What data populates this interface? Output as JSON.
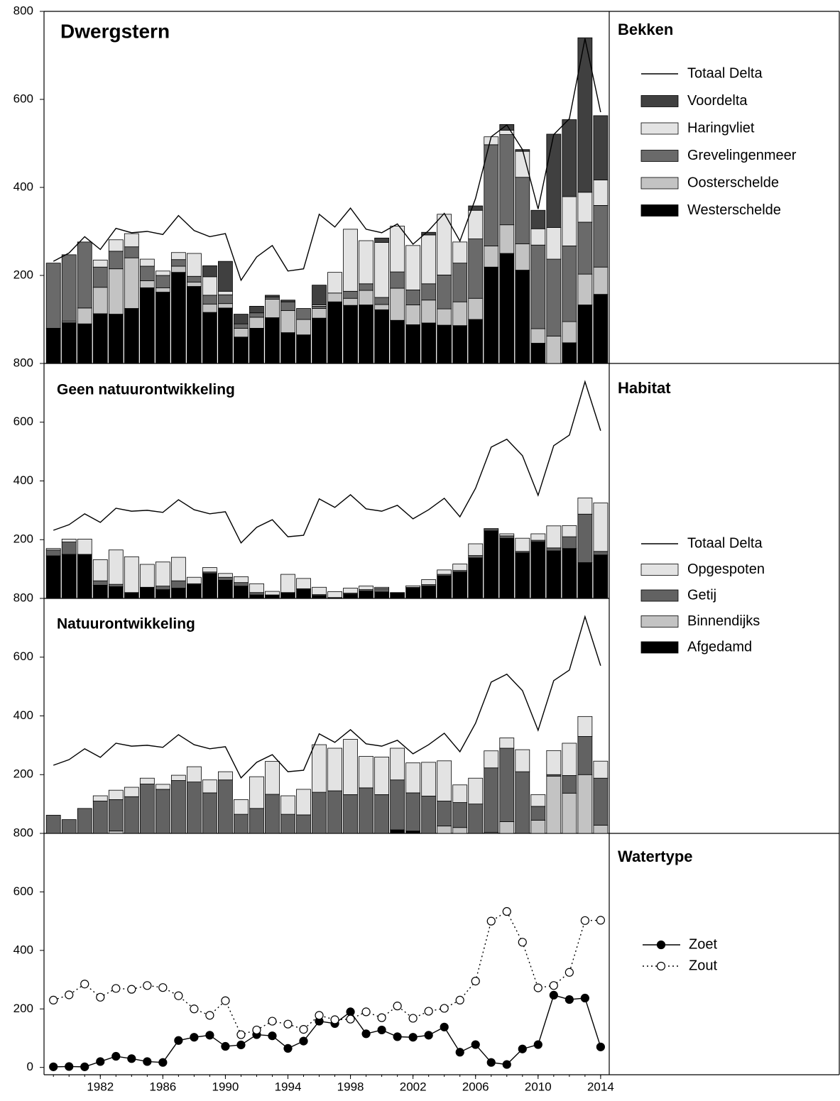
{
  "chart_data": [
    {
      "type": "bar",
      "stacked": true,
      "title": "Dwergstern",
      "legend_title": "Bekken",
      "x": [
        1979,
        1980,
        1981,
        1982,
        1983,
        1984,
        1985,
        1986,
        1987,
        1988,
        1989,
        1990,
        1991,
        1992,
        1993,
        1994,
        1995,
        1996,
        1997,
        1998,
        1999,
        2000,
        2001,
        2002,
        2003,
        2004,
        2005,
        2006,
        2007,
        2008,
        2009,
        2010,
        2011,
        2012,
        2013,
        2014
      ],
      "ylim": [
        0,
        800
      ],
      "yticks": [
        200,
        400,
        600,
        800
      ],
      "series": [
        {
          "name": "Westerschelde",
          "color": "#000000",
          "values": [
            80,
            93,
            90,
            113,
            112,
            125,
            172,
            162,
            207,
            175,
            116,
            126,
            60,
            80,
            104,
            70,
            65,
            103,
            140,
            132,
            133,
            122,
            98,
            88,
            92,
            87,
            86,
            100,
            219,
            250,
            212,
            46,
            0,
            47,
            133,
            157
          ]
        },
        {
          "name": "Oosterschelde",
          "color": "#c3c3c3",
          "values": [
            0,
            3,
            36,
            60,
            103,
            115,
            16,
            10,
            14,
            10,
            19,
            10,
            20,
            25,
            42,
            50,
            35,
            22,
            20,
            16,
            33,
            12,
            73,
            45,
            52,
            37,
            54,
            48,
            48,
            65,
            60,
            33,
            62,
            48,
            70,
            62
          ]
        },
        {
          "name": "Grevelingenmeer",
          "color": "#6a6a6a",
          "values": [
            148,
            151,
            150,
            46,
            40,
            25,
            33,
            28,
            15,
            13,
            20,
            20,
            10,
            10,
            5,
            20,
            25,
            5,
            0,
            16,
            15,
            16,
            37,
            34,
            37,
            77,
            88,
            135,
            230,
            205,
            151,
            190,
            175,
            172,
            118,
            140
          ]
        },
        {
          "name": "Haringvliet",
          "color": "#e3e3e3",
          "values": [
            0,
            0,
            0,
            16,
            26,
            30,
            16,
            10,
            16,
            52,
            42,
            8,
            0,
            0,
            0,
            0,
            0,
            3,
            47,
            141,
            98,
            125,
            104,
            101,
            111,
            138,
            48,
            65,
            18,
            10,
            59,
            37,
            72,
            112,
            68,
            58
          ]
        },
        {
          "name": "Voordelta",
          "color": "#404040",
          "values": [
            0,
            0,
            0,
            0,
            0,
            0,
            0,
            0,
            0,
            0,
            25,
            68,
            22,
            15,
            4,
            4,
            0,
            45,
            0,
            0,
            0,
            10,
            0,
            0,
            6,
            0,
            0,
            10,
            0,
            13,
            4,
            42,
            212,
            175,
            351,
            146
          ]
        },
        {
          "name": "Totaal Delta",
          "type": "line",
          "color": "#000000",
          "values": [
            232,
            251,
            288,
            259,
            307,
            297,
            300,
            293,
            336,
            302,
            288,
            295,
            189,
            242,
            268,
            210,
            215,
            339,
            310,
            353,
            305,
            297,
            317,
            271,
            302,
            341,
            278,
            375,
            515,
            542,
            486,
            351,
            520,
            556,
            738,
            571
          ]
        }
      ]
    },
    {
      "type": "bar",
      "stacked": true,
      "title": "Geen natuurontwikkeling",
      "legend_title": "Habitat",
      "total_label": "Totaal Delta",
      "ylim": [
        0,
        800
      ],
      "yticks": [
        200,
        400,
        600,
        800
      ],
      "series": [
        {
          "name": "Afgedamd",
          "color": "#000000",
          "values": [
            145,
            150,
            150,
            45,
            40,
            20,
            38,
            30,
            35,
            47,
            85,
            62,
            42,
            12,
            10,
            20,
            30,
            10,
            3,
            15,
            25,
            22,
            18,
            35,
            42,
            77,
            90,
            138,
            230,
            205,
            155,
            193,
            162,
            170,
            122,
            148
          ]
        },
        {
          "name": "Binnendijks",
          "color": "#c3c3c3",
          "values": [
            0,
            0,
            0,
            0,
            0,
            0,
            0,
            0,
            0,
            0,
            0,
            0,
            0,
            0,
            0,
            0,
            0,
            0,
            0,
            0,
            0,
            0,
            0,
            0,
            0,
            0,
            0,
            0,
            0,
            0,
            0,
            0,
            0,
            0,
            0,
            0
          ]
        },
        {
          "name": "Getij",
          "color": "#626262",
          "values": [
            20,
            42,
            0,
            15,
            8,
            0,
            0,
            12,
            25,
            3,
            5,
            10,
            12,
            8,
            2,
            0,
            3,
            3,
            0,
            3,
            5,
            12,
            2,
            3,
            5,
            5,
            5,
            8,
            5,
            8,
            5,
            5,
            10,
            40,
            165,
            12
          ]
        },
        {
          "name": "Opgespoten",
          "color": "#e3e3e3",
          "values": [
            5,
            10,
            52,
            72,
            117,
            122,
            78,
            82,
            80,
            22,
            15,
            13,
            20,
            30,
            12,
            62,
            35,
            25,
            20,
            17,
            12,
            4,
            0,
            5,
            17,
            15,
            22,
            40,
            3,
            7,
            45,
            22,
            75,
            38,
            55,
            165
          ]
        }
      ]
    },
    {
      "type": "bar",
      "stacked": true,
      "title": "Natuurontwikkeling",
      "ylim": [
        0,
        800
      ],
      "yticks": [
        200,
        400,
        600,
        800
      ],
      "series": [
        {
          "color": "#000000",
          "values": [
            0,
            0,
            0,
            0,
            0,
            0,
            0,
            0,
            0,
            0,
            0,
            0,
            0,
            0,
            0,
            0,
            0,
            0,
            0,
            0,
            0,
            0,
            12,
            8,
            0,
            0,
            0,
            0,
            0,
            0,
            0,
            0,
            0,
            0,
            0,
            0
          ]
        },
        {
          "color": "#c3c3c3",
          "values": [
            0,
            0,
            0,
            0,
            8,
            0,
            0,
            0,
            0,
            0,
            0,
            0,
            0,
            0,
            0,
            0,
            0,
            0,
            0,
            0,
            0,
            0,
            0,
            0,
            0,
            25,
            20,
            0,
            3,
            40,
            0,
            45,
            195,
            137,
            200,
            28
          ]
        },
        {
          "color": "#626262",
          "values": [
            62,
            47,
            85,
            110,
            107,
            125,
            168,
            150,
            180,
            175,
            138,
            182,
            65,
            85,
            133,
            65,
            63,
            140,
            145,
            132,
            155,
            132,
            170,
            130,
            127,
            85,
            85,
            100,
            220,
            250,
            210,
            47,
            5,
            60,
            130,
            160
          ]
        },
        {
          "color": "#e3e3e3",
          "values": [
            0,
            0,
            0,
            18,
            32,
            32,
            20,
            17,
            18,
            52,
            44,
            28,
            50,
            108,
            112,
            63,
            87,
            162,
            145,
            188,
            107,
            128,
            108,
            102,
            115,
            137,
            60,
            88,
            58,
            35,
            75,
            40,
            82,
            110,
            68,
            58
          ]
        }
      ]
    },
    {
      "type": "line",
      "legend_title": "Watertype",
      "xlim": [
        1978.4,
        2014.55
      ],
      "xticks": [
        1982,
        1986,
        1990,
        1994,
        1998,
        2002,
        2006,
        2010,
        2014
      ],
      "ylim": [
        -25,
        800
      ],
      "yticks": [
        0,
        200,
        400,
        600,
        800
      ],
      "series": [
        {
          "name": "Zoet",
          "color": "#000000",
          "marker": "filled",
          "values": [
            2,
            3,
            2,
            20,
            38,
            30,
            20,
            17,
            92,
            103,
            110,
            72,
            77,
            112,
            108,
            65,
            90,
            158,
            150,
            190,
            115,
            128,
            105,
            103,
            110,
            138,
            52,
            78,
            17,
            10,
            63,
            78,
            247,
            232,
            237,
            70
          ]
        },
        {
          "name": "Zout",
          "color": "#000000",
          "marker": "open",
          "dotted": true,
          "values": [
            230,
            248,
            285,
            240,
            270,
            267,
            280,
            273,
            245,
            200,
            178,
            228,
            112,
            128,
            158,
            148,
            130,
            178,
            163,
            165,
            190,
            170,
            210,
            168,
            192,
            202,
            230,
            295,
            500,
            533,
            428,
            272,
            280,
            325,
            502,
            503
          ]
        }
      ]
    }
  ]
}
